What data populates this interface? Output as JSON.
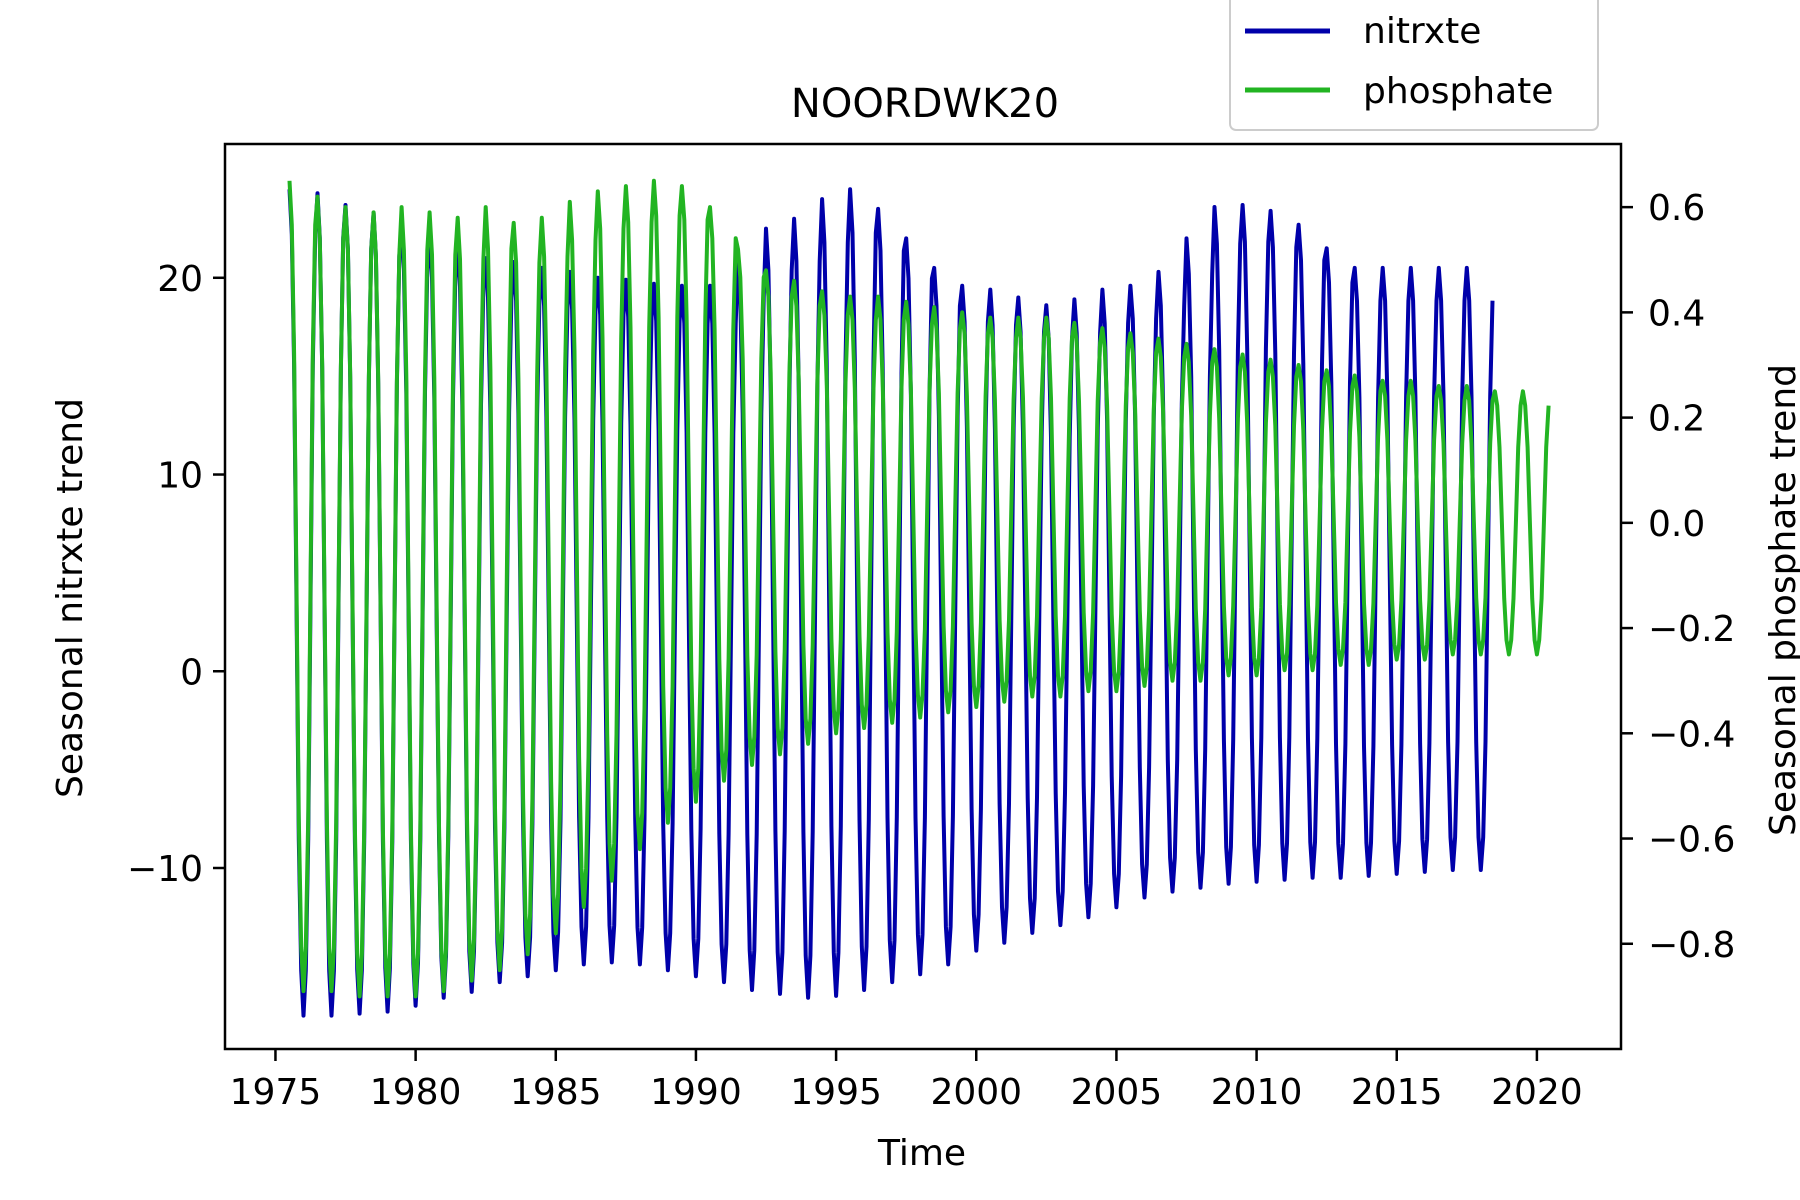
{
  "chart_data": {
    "type": "line",
    "title": "NOORDWK20",
    "xlabel": "Time",
    "ylabel_left": "Seasonal nitrxte trend",
    "ylabel_right": "Seasonal phosphate trend",
    "xlim": [
      1973.2,
      2023.0
    ],
    "ylim_left": [
      -19.2,
      26.8
    ],
    "ylim_right": [
      -1.0,
      0.72
    ],
    "x_ticks": [
      1975,
      1980,
      1985,
      1990,
      1995,
      2000,
      2005,
      2010,
      2015,
      2020
    ],
    "x_tick_labels": [
      "1975",
      "1980",
      "1985",
      "1990",
      "1995",
      "2000",
      "2005",
      "2010",
      "2015",
      "2020"
    ],
    "y_left_ticks": [
      -10,
      0,
      10,
      20
    ],
    "y_left_tick_labels": [
      "−10",
      "0",
      "10",
      "20"
    ],
    "y_right_ticks": [
      -0.8,
      -0.6,
      -0.4,
      -0.2,
      0.0,
      0.2,
      0.4,
      0.6
    ],
    "y_right_tick_labels": [
      "−0.8",
      "−0.6",
      "−0.4",
      "−0.2",
      "0.0",
      "0.2",
      "0.4",
      "0.6"
    ],
    "legend_position": "top-right, above plot",
    "grid": false,
    "series": [
      {
        "name": "nitrxte",
        "axis": "left",
        "color": "#0000aa",
        "x_start": 1975.5,
        "x_end": 2018.8,
        "peaks": [
          24.5,
          24.3,
          23.7,
          23.3,
          22.6,
          22.1,
          21.6,
          21.0,
          20.8,
          20.5,
          20.3,
          20.0,
          19.9,
          19.7,
          19.6,
          19.6,
          21.0,
          22.5,
          23.0,
          24.0,
          24.5,
          23.5,
          22.0,
          20.5,
          19.6,
          19.4,
          19.0,
          18.6,
          18.9,
          19.4,
          19.6,
          20.3,
          22.0,
          23.6,
          23.7,
          23.4,
          22.7,
          21.5,
          20.5,
          20.5,
          20.5,
          20.5,
          20.5
        ],
        "troughs": [
          -17.5,
          -17.5,
          -17.4,
          -17.3,
          -17.0,
          -16.6,
          -16.3,
          -15.8,
          -15.5,
          -15.2,
          -14.9,
          -14.8,
          -14.9,
          -15.2,
          -15.5,
          -15.8,
          -16.2,
          -16.4,
          -16.6,
          -16.5,
          -16.2,
          -15.8,
          -15.4,
          -14.9,
          -14.2,
          -13.8,
          -13.3,
          -12.9,
          -12.5,
          -12.0,
          -11.5,
          -11.2,
          -11.0,
          -10.8,
          -10.7,
          -10.6,
          -10.5,
          -10.5,
          -10.4,
          -10.3,
          -10.2,
          -10.1,
          -10.1
        ]
      },
      {
        "name": "phosphate",
        "axis": "right",
        "color": "#22b422",
        "x_start": 1975.5,
        "x_end": 2020.7,
        "peaks": [
          0.65,
          0.62,
          0.6,
          0.59,
          0.6,
          0.59,
          0.58,
          0.6,
          0.57,
          0.58,
          0.61,
          0.63,
          0.64,
          0.65,
          0.64,
          0.6,
          0.52,
          0.48,
          0.46,
          0.44,
          0.43,
          0.43,
          0.42,
          0.41,
          0.4,
          0.39,
          0.39,
          0.39,
          0.38,
          0.37,
          0.36,
          0.35,
          0.34,
          0.33,
          0.32,
          0.31,
          0.3,
          0.29,
          0.28,
          0.27,
          0.27,
          0.26,
          0.26,
          0.25,
          0.25
        ],
        "troughs": [
          -0.89,
          -0.89,
          -0.9,
          -0.9,
          -0.9,
          -0.89,
          -0.87,
          -0.85,
          -0.82,
          -0.78,
          -0.73,
          -0.68,
          -0.62,
          -0.57,
          -0.53,
          -0.49,
          -0.46,
          -0.44,
          -0.42,
          -0.4,
          -0.39,
          -0.38,
          -0.37,
          -0.36,
          -0.35,
          -0.34,
          -0.33,
          -0.33,
          -0.32,
          -0.32,
          -0.31,
          -0.3,
          -0.3,
          -0.29,
          -0.29,
          -0.28,
          -0.28,
          -0.27,
          -0.27,
          -0.26,
          -0.26,
          -0.25,
          -0.25,
          -0.25,
          -0.25
        ]
      }
    ]
  }
}
